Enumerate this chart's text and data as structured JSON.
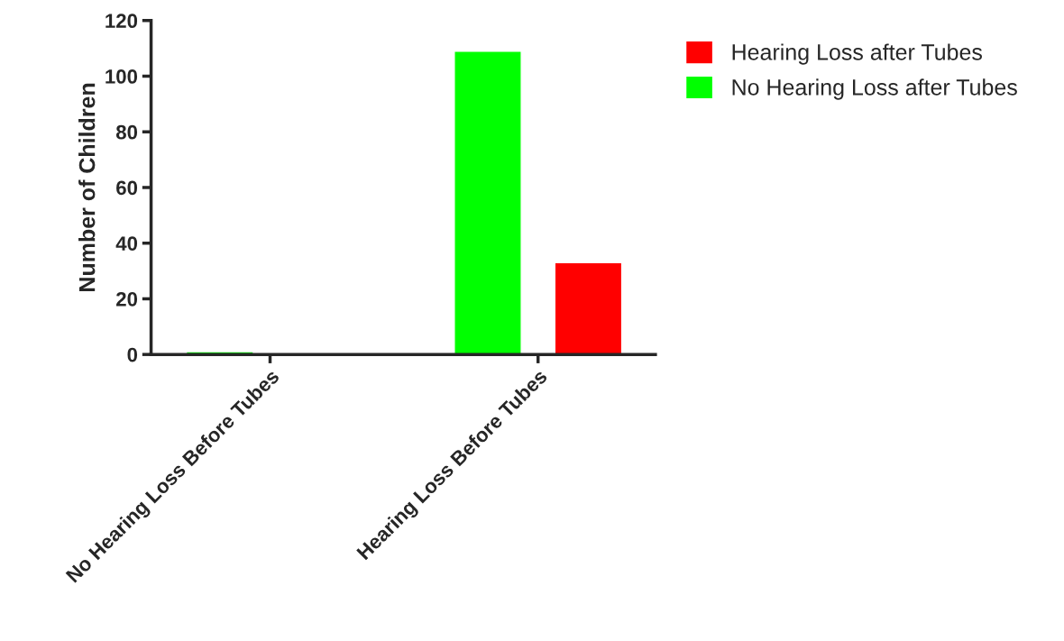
{
  "chart_data": {
    "type": "bar",
    "ylabel": "Number of Children",
    "categories": [
      "No Hearing Loss Before Tubes",
      "Hearing Loss Before Tubes"
    ],
    "series": [
      {
        "name": "Hearing Loss after Tubes",
        "color": "#ff0000",
        "values": [
          0,
          33
        ]
      },
      {
        "name": "No Hearing Loss after Tubes",
        "color": "#00ff00",
        "values": [
          1,
          109
        ]
      }
    ],
    "ylim": [
      0,
      120
    ],
    "yticks": [
      0,
      20,
      40,
      60,
      80,
      100,
      120
    ],
    "grid": false,
    "legend": "top right"
  }
}
